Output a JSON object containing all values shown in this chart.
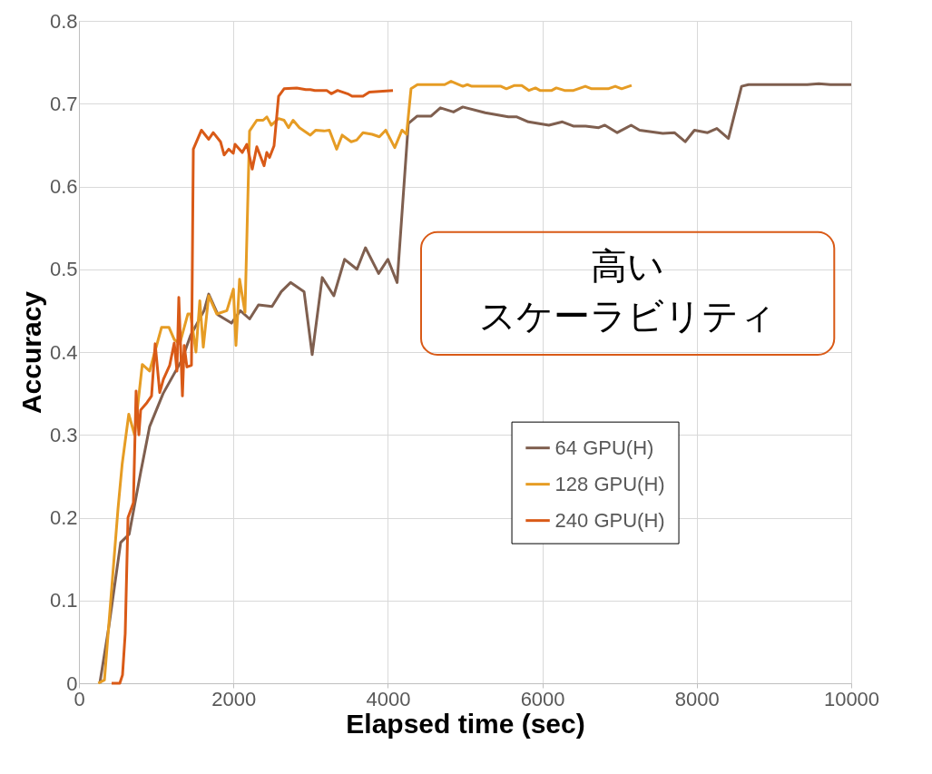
{
  "chart_data": {
    "type": "line",
    "xlabel": "Elapsed time (sec)",
    "ylabel": "Accuracy",
    "xlim": [
      0,
      10000
    ],
    "xticks": [
      0,
      2000,
      4000,
      6000,
      8000,
      10000
    ],
    "ylim": [
      0,
      0.8
    ],
    "yticks": [
      0,
      0.1,
      0.2,
      0.3,
      0.4,
      0.5,
      0.6,
      0.7,
      0.8
    ],
    "grid": true,
    "legend": "right",
    "marker": "none",
    "line_style": "solid",
    "annotations": [
      "高い",
      "スケーラビリティ"
    ],
    "series": [
      {
        "name": "64 GPU(H)",
        "color": "#7f5f4f",
        "x": [
          270,
          390,
          540,
          650,
          800,
          915,
          1090,
          1330,
          1445,
          1620,
          1680,
          1800,
          1975,
          2090,
          2210,
          2325,
          2500,
          2620,
          2740,
          2915,
          3020,
          3150,
          3300,
          3440,
          3600,
          3710,
          3880,
          4000,
          4120,
          4265,
          4380,
          4560,
          4680,
          4850,
          4970,
          5260,
          5560,
          5670,
          5820,
          6085,
          6260,
          6400,
          6560,
          6730,
          6810,
          6970,
          7150,
          7260,
          7560,
          7710,
          7850,
          7970,
          8140,
          8260,
          8410,
          8580,
          8670,
          9430,
          9580,
          9730,
          10000
        ],
        "values": [
          0,
          0.07,
          0.17,
          0.18,
          0.255,
          0.31,
          0.35,
          0.39,
          0.42,
          0.45,
          0.47,
          0.445,
          0.435,
          0.45,
          0.44,
          0.457,
          0.455,
          0.473,
          0.484,
          0.473,
          0.397,
          0.49,
          0.468,
          0.512,
          0.5,
          0.526,
          0.495,
          0.512,
          0.484,
          0.676,
          0.685,
          0.685,
          0.695,
          0.69,
          0.696,
          0.689,
          0.684,
          0.684,
          0.678,
          0.674,
          0.678,
          0.673,
          0.673,
          0.671,
          0.674,
          0.665,
          0.674,
          0.668,
          0.664,
          0.665,
          0.654,
          0.668,
          0.665,
          0.67,
          0.658,
          0.721,
          0.723,
          0.723,
          0.724,
          0.723,
          0.723
        ]
      },
      {
        "name": "128 GPU(H)",
        "color": "#e69c24",
        "x": [
          250,
          330,
          505,
          560,
          645,
          720,
          820,
          915,
          1070,
          1165,
          1235,
          1305,
          1410,
          1445,
          1515,
          1565,
          1610,
          1680,
          1785,
          1915,
          2000,
          2033,
          2080,
          2150,
          2209,
          2303,
          2385,
          2433,
          2491,
          2585,
          2656,
          2714,
          2773,
          2855,
          2996,
          3067,
          3173,
          3243,
          3337,
          3408,
          3525,
          3596,
          3678,
          3796,
          3890,
          3972,
          4089,
          4183,
          4242,
          4300,
          4383,
          4736,
          4818,
          4971,
          5029,
          5088,
          5464,
          5535,
          5640,
          5734,
          5828,
          5911,
          5969,
          6122,
          6181,
          6287,
          6404,
          6557,
          6639,
          6851,
          6945,
          7027,
          7156
        ],
        "values": [
          0,
          0.004,
          0.21,
          0.265,
          0.325,
          0.3,
          0.385,
          0.377,
          0.43,
          0.43,
          0.415,
          0.41,
          0.446,
          0.446,
          0.4,
          0.462,
          0.406,
          0.468,
          0.446,
          0.45,
          0.476,
          0.408,
          0.488,
          0.448,
          0.667,
          0.68,
          0.68,
          0.684,
          0.674,
          0.682,
          0.68,
          0.671,
          0.68,
          0.671,
          0.662,
          0.668,
          0.667,
          0.668,
          0.645,
          0.662,
          0.654,
          0.656,
          0.665,
          0.663,
          0.66,
          0.668,
          0.647,
          0.668,
          0.663,
          0.718,
          0.723,
          0.723,
          0.727,
          0.721,
          0.723,
          0.721,
          0.721,
          0.718,
          0.722,
          0.722,
          0.716,
          0.719,
          0.716,
          0.716,
          0.719,
          0.716,
          0.716,
          0.721,
          0.718,
          0.718,
          0.721,
          0.718,
          0.722
        ]
      },
      {
        "name": "240 GPU(H)",
        "color": "#d95a17",
        "x": [
          423,
          529,
          564,
          599,
          635,
          705,
          740,
          776,
          799,
          881,
          940,
          987,
          1046,
          1093,
          1175,
          1234,
          1269,
          1293,
          1340,
          1363,
          1398,
          1457,
          1481,
          1586,
          1680,
          1739,
          1833,
          1880,
          1939,
          1998,
          2021,
          2115,
          2174,
          2244,
          2303,
          2397,
          2432,
          2468,
          2526,
          2585,
          2656,
          2820,
          2938,
          2996,
          3055,
          3208,
          3267,
          3349,
          3478,
          3537,
          3678,
          3760,
          4066
        ],
        "values": [
          0,
          0,
          0.01,
          0.06,
          0.2,
          0.218,
          0.353,
          0.3,
          0.33,
          0.339,
          0.347,
          0.41,
          0.351,
          0.367,
          0.384,
          0.411,
          0.377,
          0.466,
          0.347,
          0.408,
          0.382,
          0.384,
          0.645,
          0.668,
          0.657,
          0.665,
          0.654,
          0.638,
          0.645,
          0.64,
          0.651,
          0.641,
          0.651,
          0.621,
          0.648,
          0.625,
          0.641,
          0.635,
          0.649,
          0.709,
          0.718,
          0.719,
          0.717,
          0.717,
          0.716,
          0.716,
          0.712,
          0.716,
          0.712,
          0.709,
          0.709,
          0.714,
          0.716
        ]
      }
    ]
  }
}
